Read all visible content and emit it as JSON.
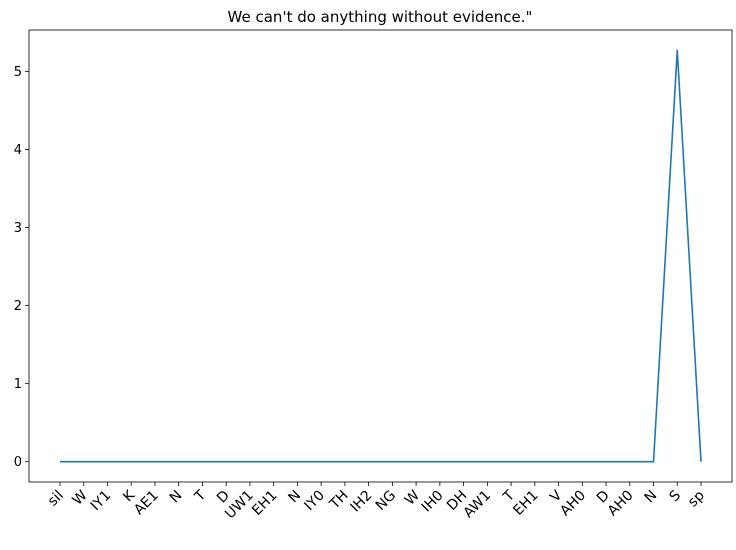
{
  "chart_data": {
    "type": "line",
    "title": "We can't do anything without evidence.\"",
    "xlabel": "",
    "ylabel": "",
    "categories": [
      "sil",
      "W",
      "IY1",
      "K",
      "AE1",
      "N",
      "T",
      "D",
      "UW1",
      "EH1",
      "N",
      "IY0",
      "TH",
      "IH2",
      "NG",
      "W",
      "IH0",
      "DH",
      "AW1",
      "T",
      "EH1",
      "V",
      "AH0",
      "D",
      "AH0",
      "N",
      "S",
      "sp"
    ],
    "series": [
      {
        "color": "#1f77b4",
        "values": [
          0,
          0,
          0,
          0,
          0,
          0,
          0,
          0,
          0,
          0,
          0,
          0,
          0,
          0,
          0,
          0,
          0,
          0,
          0,
          0,
          0,
          0,
          0,
          0,
          0,
          0,
          5.27,
          0
        ]
      }
    ],
    "yticks": [
      0,
      1,
      2,
      3,
      4,
      5
    ],
    "ylim": [
      -0.26,
      5.53
    ],
    "grid": false,
    "legend": "none"
  }
}
